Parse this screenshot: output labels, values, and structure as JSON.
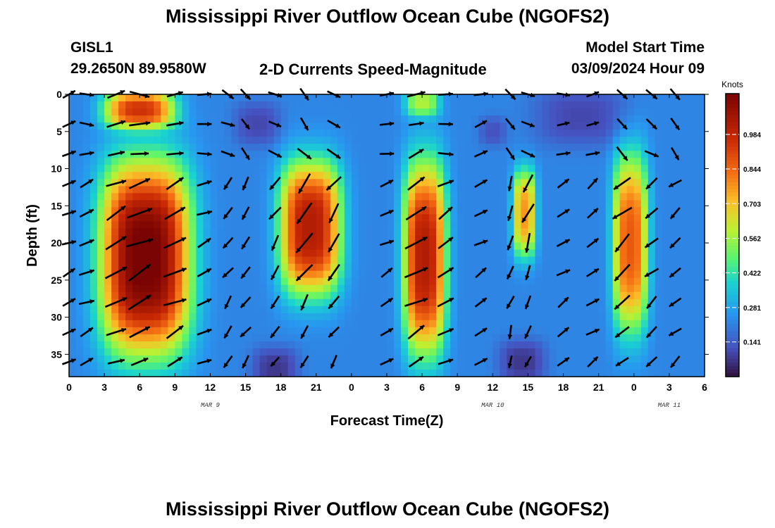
{
  "header": {
    "title": "Mississippi River Outflow Ocean Cube (NGOFS2)",
    "station": "GISL1",
    "location": "29.2650N  89.9580W",
    "subtitle": "2-D Currents Speed-Magnitude",
    "start_label": "Model Start Time",
    "start_value": "03/09/2024 Hour 09"
  },
  "footer": {
    "title": "Mississippi River Outflow Ocean Cube (NGOFS2)"
  },
  "chart_data": {
    "type": "heatmap",
    "xlabel": "Forecast Time(Z)",
    "ylabel": "Depth (ft)",
    "x_hours_range": [
      0,
      54
    ],
    "y_range": [
      0,
      38
    ],
    "x_ticks": [
      "0",
      "3",
      "6",
      "9",
      "12",
      "15",
      "18",
      "21",
      "0",
      "3",
      "6",
      "9",
      "12",
      "15",
      "18",
      "21",
      "0",
      "3",
      "6"
    ],
    "y_ticks": [
      "0",
      "5",
      "10",
      "15",
      "20",
      "25",
      "30",
      "35"
    ],
    "day_labels": [
      {
        "label": "MAR 9",
        "hour": 12
      },
      {
        "label": "MAR 10",
        "hour": 36
      },
      {
        "label": "MAR 11",
        "hour": 51
      }
    ],
    "colorbar": {
      "title": "Knots",
      "range": [
        0,
        1.15
      ],
      "ticks": [
        "0.141",
        "0.281",
        "0.422",
        "0.562",
        "0.703",
        "0.844",
        "0.984"
      ],
      "tick_values": [
        0.141,
        0.281,
        0.422,
        0.562,
        0.703,
        0.844,
        0.984
      ]
    },
    "speed_blobs": [
      {
        "h": 6,
        "z": 2,
        "ah": 3,
        "az": 2.5,
        "v": 0.7
      },
      {
        "h": 6.5,
        "z": 22,
        "ah": 3.8,
        "az": 13,
        "v": 0.95
      },
      {
        "h": 20.5,
        "z": 18,
        "ah": 2.6,
        "az": 9,
        "v": 0.8
      },
      {
        "h": 30.2,
        "z": 22,
        "ah": 1.8,
        "az": 13,
        "v": 0.8
      },
      {
        "h": 38.7,
        "z": 16,
        "ah": 1.0,
        "az": 6,
        "v": 0.55
      },
      {
        "h": 47.7,
        "z": 20,
        "ah": 1.5,
        "az": 12,
        "v": 0.65
      },
      {
        "h": 30,
        "z": 1,
        "ah": 1.5,
        "az": 2,
        "v": 0.35
      },
      {
        "h": 16,
        "z": 4,
        "ah": 2,
        "az": 3,
        "v": -0.12
      },
      {
        "h": 17.5,
        "z": 37,
        "ah": 2,
        "az": 3,
        "v": -0.15
      },
      {
        "h": 38.5,
        "z": 36,
        "ah": 2,
        "az": 3,
        "v": -0.15
      },
      {
        "h": 43.5,
        "z": 3,
        "ah": 4,
        "az": 4,
        "v": -0.12
      },
      {
        "h": 36,
        "z": 5,
        "ah": 1.2,
        "az": 2,
        "v": -0.1
      }
    ],
    "vectors_time_hours": [
      0,
      1.5,
      4,
      6,
      9,
      11.5,
      13.5,
      15,
      17.5,
      20,
      22.5,
      27,
      29.5,
      32,
      35,
      37.5,
      39,
      42,
      44.5,
      47,
      49.5,
      51.5
    ],
    "vectors_depth_ft": [
      0,
      4,
      8,
      12,
      16,
      20,
      24,
      28,
      32,
      36
    ],
    "vector_regimes": [
      {
        "from_hour": 0,
        "to_hour": 13,
        "angle_deg": -25,
        "label": "ebb"
      },
      {
        "from_hour": 13,
        "to_hour": 27,
        "angle_deg": 125,
        "label": "flood"
      },
      {
        "from_hour": 27,
        "to_hour": 37,
        "angle_deg": -30,
        "label": "ebb"
      },
      {
        "from_hour": 37,
        "to_hour": 42,
        "angle_deg": 110,
        "label": "flood"
      },
      {
        "from_hour": 42,
        "to_hour": 47,
        "angle_deg": -35,
        "label": "ebb"
      },
      {
        "from_hour": 47,
        "to_hour": 54,
        "angle_deg": 140,
        "label": "flood"
      }
    ]
  }
}
